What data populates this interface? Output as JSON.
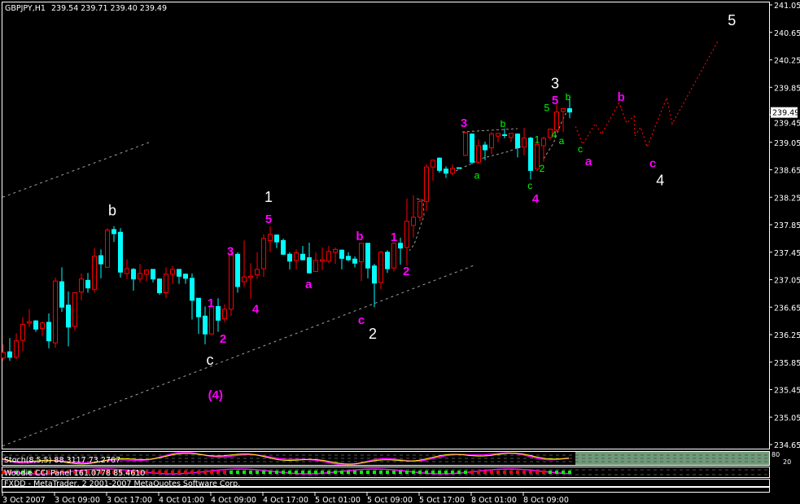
{
  "header": {
    "symbol": "GBPJPY,H1",
    "ohlc": "239.54 239.71 239.40 239.49"
  },
  "colors": {
    "background": "#000000",
    "bull_candle": "#ff0000",
    "bear_candle": "#00ffff",
    "wave_white": "#ffffff",
    "wave_magenta": "#ff00ff",
    "wave_green": "#00ff00",
    "projection": "#ff0000",
    "trendline": "#a0a0a0",
    "stoch_main": "#ffff00",
    "stoch_signal": "#ff00ff",
    "stoch_shade": "#6e9a78"
  },
  "price_axis": {
    "labels": [
      "241.05",
      "240.65",
      "240.25",
      "239.85",
      "239.45",
      "239.05",
      "238.65",
      "238.25",
      "237.85",
      "237.45",
      "237.05",
      "236.65",
      "236.25",
      "235.85",
      "235.45",
      "235.05",
      "234.65"
    ],
    "current_price": "239.49"
  },
  "time_axis": {
    "labels": [
      "3 Oct 2007",
      "3 Oct 09:00",
      "3 Oct 17:00",
      "4 Oct 01:00",
      "4 Oct 09:00",
      "4 Oct 17:00",
      "5 Oct 01:00",
      "5 Oct 09:00",
      "5 Oct 17:00",
      "8 Oct 01:00",
      "8 Oct 09:00"
    ]
  },
  "indicators": {
    "stoch_label": "Stoch(8,5,5) 88.3117 73.2767",
    "stoch_levels": [
      "80",
      "20"
    ],
    "cci_label": "Woodie CCI Panel 161.0778 85.4610",
    "copyright": "FXDD - MetaTrader, 2 2001-2007 MetaQuotes Software Corp."
  },
  "chart_data": {
    "type": "candlestick",
    "symbol": "GBPJPY",
    "timeframe": "H1",
    "ylim": [
      234.65,
      241.05
    ],
    "grid": false,
    "candles_ohlc": [
      [
        235.91,
        236.11,
        235.87,
        235.99
      ],
      [
        236.0,
        236.2,
        235.87,
        235.92
      ],
      [
        235.92,
        236.27,
        235.89,
        236.16
      ],
      [
        236.17,
        236.5,
        236.01,
        236.4
      ],
      [
        236.42,
        236.62,
        236.36,
        236.44
      ],
      [
        236.45,
        236.46,
        236.29,
        236.33
      ],
      [
        236.34,
        236.44,
        236.23,
        236.42
      ],
      [
        236.43,
        236.56,
        236.05,
        236.16
      ],
      [
        236.13,
        237.08,
        236.06,
        237.03
      ],
      [
        237.02,
        237.23,
        236.58,
        236.65
      ],
      [
        236.68,
        236.88,
        236.08,
        236.36
      ],
      [
        236.37,
        236.87,
        236.31,
        236.86
      ],
      [
        236.87,
        237.14,
        236.75,
        237.06
      ],
      [
        237.04,
        237.15,
        236.86,
        236.93
      ],
      [
        236.91,
        237.51,
        236.86,
        237.39
      ],
      [
        237.4,
        237.49,
        237.07,
        237.28
      ],
      [
        237.23,
        237.8,
        237.22,
        237.77
      ],
      [
        237.78,
        237.83,
        237.6,
        237.72
      ],
      [
        237.74,
        237.8,
        237.08,
        237.16
      ],
      [
        237.14,
        237.35,
        237.06,
        237.21
      ],
      [
        237.2,
        237.22,
        236.89,
        237.06
      ],
      [
        237.06,
        237.28,
        237.01,
        237.14
      ],
      [
        237.13,
        237.2,
        237.03,
        237.19
      ],
      [
        237.2,
        237.2,
        237.01,
        237.06
      ],
      [
        237.06,
        237.07,
        236.83,
        236.86
      ],
      [
        236.86,
        237.23,
        236.78,
        237.13
      ],
      [
        237.13,
        237.25,
        236.99,
        237.2
      ],
      [
        237.2,
        237.2,
        236.99,
        237.1
      ],
      [
        237.13,
        237.14,
        236.99,
        237.07
      ],
      [
        237.07,
        237.14,
        236.47,
        236.75
      ],
      [
        236.78,
        236.78,
        236.26,
        236.51
      ],
      [
        236.52,
        236.66,
        236.11,
        236.26
      ],
      [
        236.26,
        236.68,
        236.25,
        236.66
      ],
      [
        236.66,
        236.78,
        236.29,
        236.46
      ],
      [
        236.48,
        236.69,
        236.43,
        236.62
      ],
      [
        236.62,
        237.45,
        236.52,
        237.41
      ],
      [
        237.42,
        237.45,
        236.86,
        236.95
      ],
      [
        237.02,
        237.62,
        236.94,
        237.09
      ],
      [
        237.08,
        237.29,
        236.77,
        237.1
      ],
      [
        237.12,
        237.45,
        237.06,
        237.2
      ],
      [
        237.21,
        237.71,
        237.09,
        237.65
      ],
      [
        237.62,
        237.83,
        237.45,
        237.71
      ],
      [
        237.7,
        237.71,
        237.51,
        237.6
      ],
      [
        237.62,
        237.65,
        237.41,
        237.42
      ],
      [
        237.42,
        237.45,
        237.2,
        237.32
      ],
      [
        237.33,
        237.49,
        237.2,
        237.44
      ],
      [
        237.42,
        237.54,
        237.33,
        237.34
      ],
      [
        237.37,
        237.59,
        237.14,
        237.15
      ],
      [
        237.17,
        237.45,
        237.16,
        237.33
      ],
      [
        237.32,
        237.52,
        237.19,
        237.34
      ],
      [
        237.32,
        237.54,
        237.29,
        237.46
      ],
      [
        237.45,
        237.52,
        237.28,
        237.49
      ],
      [
        237.48,
        237.49,
        237.2,
        237.36
      ],
      [
        237.39,
        237.45,
        237.32,
        237.34
      ],
      [
        237.35,
        237.39,
        237.23,
        237.29
      ],
      [
        237.31,
        237.58,
        237.03,
        237.58
      ],
      [
        237.58,
        237.58,
        237.07,
        237.22
      ],
      [
        237.25,
        237.28,
        236.65,
        237.0
      ],
      [
        237.01,
        237.47,
        236.91,
        237.45
      ],
      [
        237.45,
        237.48,
        237.15,
        237.21
      ],
      [
        237.22,
        237.58,
        237.17,
        237.58
      ],
      [
        237.58,
        237.66,
        237.27,
        237.51
      ],
      [
        237.52,
        238.23,
        237.25,
        237.9
      ],
      [
        237.84,
        238.28,
        237.66,
        237.96
      ],
      [
        237.96,
        238.23,
        237.9,
        238.19
      ],
      [
        238.19,
        238.73,
        238.05,
        238.69
      ],
      [
        238.69,
        238.8,
        238.49,
        238.79
      ],
      [
        238.82,
        238.83,
        238.61,
        238.64
      ],
      [
        238.66,
        238.7,
        238.53,
        238.6
      ],
      [
        238.6,
        238.73,
        238.57,
        238.67
      ],
      [
        238.68,
        238.68,
        238.67,
        238.67
      ],
      [
        238.86,
        239.2,
        238.85,
        239.19
      ],
      [
        239.17,
        239.18,
        238.73,
        238.76
      ],
      [
        238.76,
        239.09,
        238.74,
        239.0
      ],
      [
        239.01,
        239.06,
        238.79,
        238.94
      ],
      [
        238.97,
        239.2,
        238.88,
        239.17
      ],
      [
        239.14,
        239.19,
        239.05,
        239.18
      ],
      [
        239.16,
        239.25,
        239.11,
        239.15
      ],
      [
        239.12,
        239.18,
        239.05,
        239.18
      ],
      [
        239.17,
        239.18,
        238.83,
        238.97
      ],
      [
        238.98,
        239.26,
        238.86,
        239.11
      ],
      [
        239.11,
        239.13,
        238.51,
        238.64
      ],
      [
        238.66,
        239.07,
        238.63,
        239.02
      ],
      [
        239.0,
        239.13,
        238.77,
        239.11
      ],
      [
        239.12,
        239.25,
        239.08,
        239.24
      ],
      [
        239.23,
        239.6,
        239.2,
        239.49
      ],
      [
        239.5,
        239.55,
        239.2,
        239.54
      ],
      [
        239.54,
        239.71,
        239.4,
        239.49
      ]
    ],
    "projection_path": [
      [
        88.9,
        239.28
      ],
      [
        90.0,
        239.02
      ],
      [
        91.9,
        239.32
      ],
      [
        92.9,
        239.17
      ],
      [
        95.6,
        239.62
      ],
      [
        96.75,
        239.33
      ],
      [
        97.9,
        239.43
      ],
      [
        98.0,
        239.14
      ],
      [
        98.9,
        239.27
      ],
      [
        99.9,
        238.98
      ],
      [
        102.9,
        239.7
      ],
      [
        103.75,
        239.32
      ],
      [
        110.75,
        240.52
      ]
    ],
    "trendlines": [
      [
        [
          0.9,
          238.25
        ],
        [
          23.75,
          239.06
        ]
      ],
      [
        [
          0.9,
          234.63
        ],
        [
          73.6,
          237.27
        ]
      ]
    ],
    "annotations": [
      {
        "text": "b",
        "bar": 17.75,
        "price": 238.04,
        "color": "white"
      },
      {
        "text": "1",
        "bar": 41.75,
        "price": 238.24,
        "color": "white"
      },
      {
        "text": "c",
        "bar": 32.75,
        "price": 235.87,
        "color": "white"
      },
      {
        "text": "2",
        "bar": 57.75,
        "price": 236.25,
        "color": "white"
      },
      {
        "text": "3",
        "bar": 85.75,
        "price": 239.89,
        "color": "white"
      },
      {
        "text": "4",
        "bar": 101.9,
        "price": 238.48,
        "color": "white"
      },
      {
        "text": "5",
        "bar": 112.9,
        "price": 240.81,
        "color": "white"
      },
      {
        "text": "(4)",
        "bar": 33.6,
        "price": 235.36,
        "color": "magenta"
      },
      {
        "text": "5",
        "bar": 41.75,
        "price": 237.92,
        "color": "magenta"
      },
      {
        "text": "3",
        "bar": 35.9,
        "price": 237.45,
        "color": "magenta"
      },
      {
        "text": "1",
        "bar": 32.9,
        "price": 236.7,
        "color": "magenta"
      },
      {
        "text": "2",
        "bar": 34.75,
        "price": 236.18,
        "color": "magenta"
      },
      {
        "text": "4",
        "bar": 39.75,
        "price": 236.61,
        "color": "magenta"
      },
      {
        "text": "a",
        "bar": 47.9,
        "price": 236.97,
        "color": "magenta"
      },
      {
        "text": "b",
        "bar": 55.75,
        "price": 237.67,
        "color": "magenta"
      },
      {
        "text": "c",
        "bar": 57.75,
        "price": 236.45,
        "color": "magenta"
      },
      {
        "text": "1",
        "bar": 61.0,
        "price": 237.66,
        "color": "magenta"
      },
      {
        "text": "2",
        "bar": 62.9,
        "price": 237.16,
        "color": "magenta"
      },
      {
        "text": "3",
        "bar": 71.75,
        "price": 239.32,
        "color": "magenta"
      },
      {
        "text": "4",
        "bar": 82.75,
        "price": 238.22,
        "color": "magenta"
      },
      {
        "text": "5",
        "bar": 85.75,
        "price": 239.65,
        "color": "magenta"
      },
      {
        "text": "a",
        "bar": 90.9,
        "price": 238.76,
        "color": "magenta"
      },
      {
        "text": "b",
        "bar": 95.9,
        "price": 239.7,
        "color": "magenta"
      },
      {
        "text": "c",
        "bar": 100.75,
        "price": 238.73,
        "color": "magenta"
      },
      {
        "text": "a",
        "bar": 73.75,
        "price": 238.56,
        "color": "green"
      },
      {
        "text": "b",
        "bar": 77.75,
        "price": 239.31,
        "color": "green"
      },
      {
        "text": "c",
        "bar": 81.9,
        "price": 238.41,
        "color": "green"
      },
      {
        "text": "1",
        "bar": 83.0,
        "price": 239.08,
        "color": "green"
      },
      {
        "text": "2",
        "bar": 83.75,
        "price": 238.66,
        "color": "green"
      },
      {
        "text": "4",
        "bar": 85.6,
        "price": 239.15,
        "color": "green"
      },
      {
        "text": "5",
        "bar": 85.6,
        "price": 239.54,
        "color": "green"
      },
      {
        "text": "a",
        "bar": 86.75,
        "price": 239.06,
        "color": "green"
      },
      {
        "text": "b",
        "bar": 87.75,
        "price": 239.7,
        "color": "green"
      },
      {
        "text": "c",
        "bar": 90.75,
        "price": 238.94,
        "color": "green"
      }
    ]
  }
}
